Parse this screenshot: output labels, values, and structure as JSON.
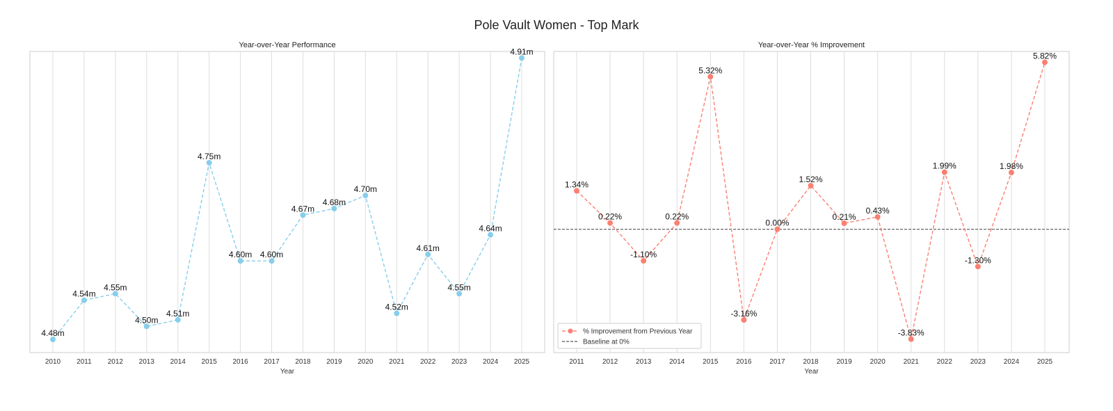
{
  "title": "Pole Vault Women - Top Mark",
  "chart_data": [
    {
      "type": "line",
      "title": "Year-over-Year Performance",
      "xlabel": "Year",
      "ylabel": "",
      "x": [
        "2010",
        "2011",
        "2012",
        "2013",
        "2014",
        "2015",
        "2016",
        "2017",
        "2018",
        "2019",
        "2020",
        "2021",
        "2022",
        "2023",
        "2024",
        "2025"
      ],
      "series": [
        {
          "values": [
            4.48,
            4.54,
            4.55,
            4.5,
            4.51,
            4.75,
            4.6,
            4.6,
            4.67,
            4.68,
            4.7,
            4.52,
            4.61,
            4.55,
            4.64,
            4.91
          ],
          "labels": [
            "4.48m",
            "4.54m",
            "4.55m",
            "4.50m",
            "4.51m",
            "4.75m",
            "4.60m",
            "4.60m",
            "4.67m",
            "4.68m",
            "4.70m",
            "4.52m",
            "4.61m",
            "4.55m",
            "4.64m",
            "4.91m"
          ],
          "color": "#87ceeb"
        }
      ],
      "ylim": [
        4.46,
        4.92
      ],
      "grid": "vertical",
      "legend": "none"
    },
    {
      "type": "line",
      "title": "Year-over-Year % Improvement",
      "xlabel": "Year",
      "ylabel": "",
      "x": [
        "2011",
        "2012",
        "2013",
        "2014",
        "2015",
        "2016",
        "2017",
        "2018",
        "2019",
        "2020",
        "2021",
        "2022",
        "2023",
        "2024",
        "2025"
      ],
      "series": [
        {
          "name": "% Improvement from Previous Year",
          "values": [
            1.34,
            0.22,
            -1.1,
            0.22,
            5.32,
            -3.16,
            0.0,
            1.52,
            0.21,
            0.43,
            -3.83,
            1.99,
            -1.3,
            1.98,
            5.82
          ],
          "labels": [
            "1.34%",
            "0.22%",
            "-1.10%",
            "0.22%",
            "5.32%",
            "-3.16%",
            "0.00%",
            "1.52%",
            "0.21%",
            "0.43%",
            "-3.83%",
            "1.99%",
            "-1.30%",
            "1.98%",
            "5.82%"
          ],
          "color": "#fa8072"
        }
      ],
      "baseline": {
        "name": "Baseline at 0%",
        "value": 0,
        "color": "#555555"
      },
      "ylim": [
        -4.3,
        6.2
      ],
      "grid": "vertical",
      "legend": "bottom-left"
    }
  ]
}
